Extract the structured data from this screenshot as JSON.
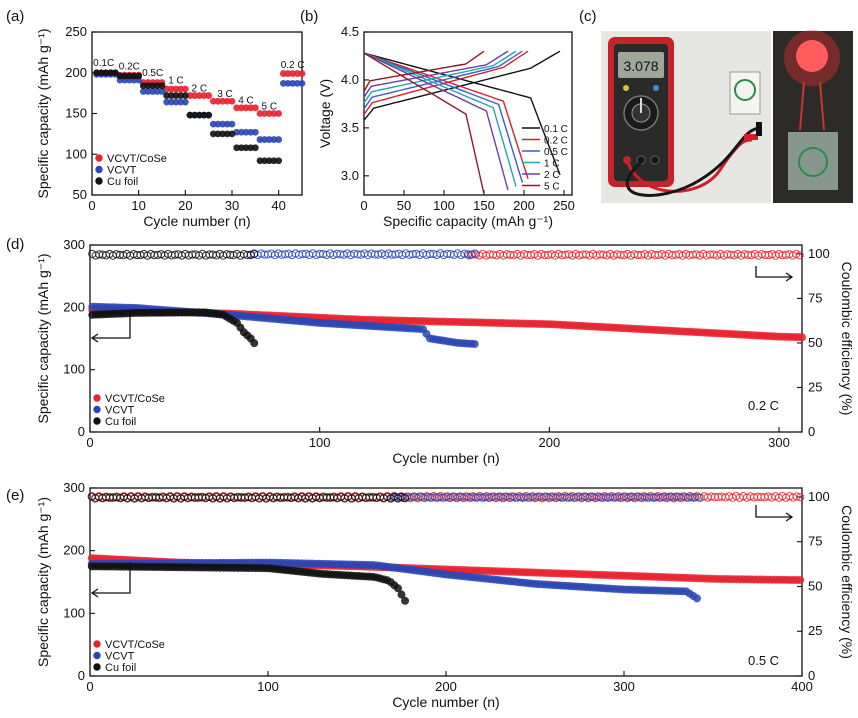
{
  "panels": {
    "a": {
      "label": "(a)"
    },
    "b": {
      "label": "(b)"
    },
    "c": {
      "label": "(c)"
    },
    "d": {
      "label": "(d)"
    },
    "e": {
      "label": "(e)"
    }
  },
  "photo": {
    "multimeter_reading": "3.078",
    "colors": {
      "body": "#c4232a",
      "screen": "#9ea79a",
      "lead_red": "#d11f27",
      "lead_black": "#161616",
      "led": "#ff2d2d"
    }
  },
  "colors": {
    "vcvt_cose": "#e8232e",
    "vcvt": "#2b46b4",
    "cu": "#111111"
  },
  "chart_data": [
    {
      "id": "a",
      "type": "scatter",
      "xlabel": "Cycle number (n)",
      "ylabel": "Specific capacity (mAh g⁻¹)",
      "xlim": [
        0,
        45
      ],
      "ylim": [
        50,
        250
      ],
      "xticks": [
        0,
        10,
        20,
        30,
        40
      ],
      "yticks": [
        50,
        100,
        150,
        200,
        250
      ],
      "legend_position": "bottom-left",
      "annotations": [
        {
          "text": "0.1C",
          "x": 2.5,
          "y": 208
        },
        {
          "text": "0.2C",
          "x": 8,
          "y": 204
        },
        {
          "text": "0.5C",
          "x": 13,
          "y": 196
        },
        {
          "text": "1 C",
          "x": 18,
          "y": 187
        },
        {
          "text": "2 C",
          "x": 23,
          "y": 177
        },
        {
          "text": "3 C",
          "x": 28.5,
          "y": 170
        },
        {
          "text": "4 C",
          "x": 33,
          "y": 162
        },
        {
          "text": "5 C",
          "x": 38,
          "y": 155
        },
        {
          "text": "0.2 C",
          "x": 43,
          "y": 206
        }
      ],
      "series": [
        {
          "name": "VCVT/CoSe",
          "color": "#e8232e",
          "x_start": 1,
          "values": [
            200,
            200,
            200,
            200,
            200,
            197,
            197,
            197,
            197,
            197,
            188,
            188,
            188,
            188,
            188,
            180,
            180,
            180,
            180,
            180,
            172,
            172,
            172,
            172,
            172,
            165,
            165,
            165,
            165,
            165,
            157,
            157,
            157,
            157,
            157,
            150,
            150,
            150,
            150,
            150,
            199,
            199,
            199,
            199,
            199
          ]
        },
        {
          "name": "VCVT",
          "color": "#2b46b4",
          "x_start": 1,
          "values": [
            198,
            198,
            198,
            198,
            198,
            191,
            191,
            191,
            191,
            191,
            177,
            177,
            177,
            177,
            177,
            164,
            164,
            164,
            164,
            164,
            148,
            148,
            148,
            148,
            148,
            137,
            137,
            137,
            137,
            137,
            127,
            127,
            127,
            127,
            127,
            118,
            118,
            118,
            118,
            118,
            187,
            187,
            187,
            187,
            187
          ]
        },
        {
          "name": "Cu foil",
          "color": "#111111",
          "x_start": 1,
          "values": [
            200,
            200,
            200,
            200,
            200,
            196,
            196,
            196,
            196,
            196,
            184,
            184,
            184,
            184,
            184,
            172,
            172,
            172,
            172,
            172,
            148,
            148,
            148,
            148,
            148,
            125,
            125,
            125,
            125,
            125,
            108,
            108,
            108,
            108,
            108,
            92,
            92,
            92,
            92,
            92
          ]
        }
      ]
    },
    {
      "id": "b",
      "type": "line",
      "xlabel": "Specific capacity (mAh g⁻¹)",
      "ylabel": "Voltage (V)",
      "xlim": [
        0,
        260
      ],
      "ylim": [
        2.8,
        4.5
      ],
      "xticks": [
        0,
        50,
        100,
        150,
        200,
        250
      ],
      "yticks": [
        3.0,
        3.5,
        4.0,
        4.5
      ],
      "legend_position": "bottom-right",
      "series": [
        {
          "name": "0.1 C",
          "color": "#111111",
          "capacity": 245
        },
        {
          "name": "0.2 C",
          "color": "#d2232a",
          "capacity": 205
        },
        {
          "name": "0.5 C",
          "color": "#3a5fc9",
          "capacity": 198
        },
        {
          "name": "1 C",
          "color": "#22a7b0",
          "capacity": 190
        },
        {
          "name": "2 C",
          "color": "#6b3fa0",
          "capacity": 180
        },
        {
          "name": "5 C",
          "color": "#8b1c2a",
          "capacity": 150
        }
      ]
    },
    {
      "id": "d",
      "type": "scatter",
      "rate_label": "0.2 C",
      "xlabel": "Cycle number (n)",
      "ylabel": "Specific capacity (mAh g⁻¹)",
      "y2label": "Coulombic efficiency (%)",
      "xlim": [
        0,
        310
      ],
      "ylim": [
        0,
        300
      ],
      "y2lim": [
        0,
        105
      ],
      "xticks": [
        0,
        100,
        200,
        300
      ],
      "yticks": [
        0,
        100,
        200,
        300
      ],
      "y2ticks": [
        0,
        25,
        50,
        75,
        100
      ],
      "legend_position": "bottom-left",
      "capacity_series": [
        {
          "name": "VCVT/CoSe",
          "color": "#e8232e",
          "points": [
            [
              1,
              196
            ],
            [
              60,
              190
            ],
            [
              120,
              180
            ],
            [
              200,
              173
            ],
            [
              300,
              153
            ],
            [
              310,
              152
            ]
          ]
        },
        {
          "name": "VCVT",
          "color": "#2b46b4",
          "points": [
            [
              1,
              201
            ],
            [
              20,
              199
            ],
            [
              60,
              188
            ],
            [
              100,
              175
            ],
            [
              145,
              165
            ],
            [
              148,
              150
            ],
            [
              160,
              143
            ],
            [
              168,
              141
            ]
          ]
        },
        {
          "name": "Cu foil",
          "color": "#111111",
          "points": [
            [
              1,
              188
            ],
            [
              20,
              191
            ],
            [
              50,
              192
            ],
            [
              58,
              188
            ],
            [
              64,
              175
            ],
            [
              67,
              160
            ],
            [
              70,
              150
            ],
            [
              72,
              140
            ]
          ]
        }
      ],
      "ce_series": [
        {
          "name": "VCVT/CoSe",
          "color": "#e8232e",
          "from": 165,
          "to": 310,
          "value": 99.5
        },
        {
          "name": "VCVT",
          "color": "#2b46b4",
          "from": 70,
          "to": 168,
          "value": 99.8
        },
        {
          "name": "Cu foil",
          "color": "#111111",
          "from": 1,
          "to": 72,
          "value": 99.5
        }
      ]
    },
    {
      "id": "e",
      "type": "scatter",
      "rate_label": "0.5 C",
      "xlabel": "Cycle number (n)",
      "ylabel": "Specific capacity (mAh g⁻¹)",
      "y2label": "Coulombic efficiency (%)",
      "xlim": [
        0,
        400
      ],
      "ylim": [
        0,
        300
      ],
      "y2lim": [
        0,
        105
      ],
      "xticks": [
        0,
        100,
        200,
        300,
        400
      ],
      "yticks": [
        0,
        100,
        200,
        300
      ],
      "y2ticks": [
        0,
        25,
        50,
        75,
        100
      ],
      "legend_position": "bottom-left",
      "capacity_series": [
        {
          "name": "VCVT/CoSe",
          "color": "#e8232e",
          "points": [
            [
              1,
              188
            ],
            [
              50,
              181
            ],
            [
              150,
              175
            ],
            [
              250,
              165
            ],
            [
              350,
              155
            ],
            [
              400,
              153
            ]
          ]
        },
        {
          "name": "VCVT",
          "color": "#2b46b4",
          "points": [
            [
              1,
              179
            ],
            [
              100,
              181
            ],
            [
              160,
              177
            ],
            [
              200,
              162
            ],
            [
              250,
              147
            ],
            [
              300,
              138
            ],
            [
              335,
              135
            ],
            [
              342,
              122
            ]
          ]
        },
        {
          "name": "Cu foil",
          "color": "#111111",
          "points": [
            [
              1,
              175
            ],
            [
              100,
              172
            ],
            [
              130,
              163
            ],
            [
              160,
              158
            ],
            [
              168,
              152
            ],
            [
              173,
              140
            ],
            [
              177,
              120
            ],
            [
              178,
              110
            ]
          ]
        }
      ],
      "ce_series": [
        {
          "name": "VCVT/CoSe",
          "color": "#e8232e",
          "from": 1,
          "to": 400,
          "value": 100
        },
        {
          "name": "VCVT",
          "color": "#2b46b4",
          "from": 170,
          "to": 342,
          "value": 99.8
        },
        {
          "name": "Cu foil",
          "color": "#111111",
          "from": 1,
          "to": 178,
          "value": 99.6
        }
      ]
    }
  ]
}
